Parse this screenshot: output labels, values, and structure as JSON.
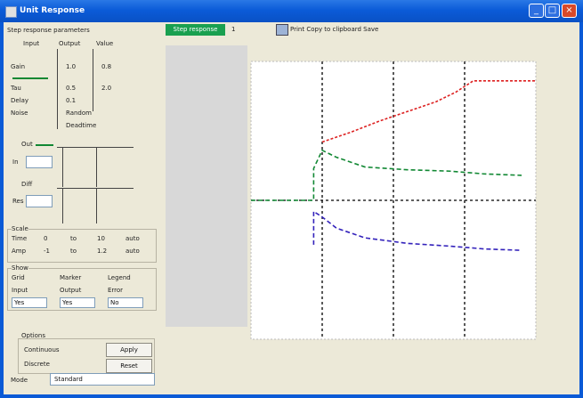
{
  "window": {
    "title": "Unit Response"
  },
  "titlebar_buttons": {
    "minimize": "_",
    "maximize": "□",
    "close": "×"
  },
  "toolbar": {
    "active_tab": "Step response",
    "tab2": "1",
    "icon": "print-icon",
    "label": "Print  Copy to clipboard  Save"
  },
  "left_panel": {
    "header": "Step response parameters",
    "col_headers": [
      "Input",
      "Output",
      "Value"
    ],
    "rows": [
      {
        "name": "Gain",
        "a": "1.0",
        "b": "0.8"
      },
      {
        "name": "Tau",
        "a": "0.5",
        "b": "2.0"
      },
      {
        "name": "Delay",
        "a": "0.1",
        "b": ""
      },
      {
        "name": "Noise",
        "a": "Random",
        "b": ""
      }
    ],
    "extra": "Deadtime",
    "small_labels": [
      "Out",
      "In",
      "Diff",
      "Res"
    ],
    "group1_title": "Scale",
    "group1_row1": [
      "Time",
      "0",
      "to",
      "10",
      "auto"
    ],
    "group1_row2": [
      "Amp",
      "-1",
      "to",
      "1.2",
      "auto"
    ],
    "group2_title": "Show",
    "group2_row1": [
      "Grid",
      "Marker",
      "Legend"
    ],
    "group2_row2": [
      "Input",
      "Output",
      "Error"
    ],
    "group2_values": [
      "Yes",
      "Yes",
      "No"
    ],
    "bottom_label": "Options",
    "radio1": "Continuous",
    "radio2": "Discrete",
    "btn_apply": "Apply",
    "btn_reset": "Reset",
    "footer_label": "Mode",
    "footer_value": "Standard"
  },
  "chart_data": {
    "type": "line",
    "series": [
      {
        "x": [
          0.25,
          0.35,
          0.45,
          0.55,
          0.65,
          0.72,
          0.78,
          0.86,
          0.95,
          1.0
        ],
        "values": [
          0.42,
          0.49,
          0.57,
          0.64,
          0.71,
          0.78,
          0.86,
          0.86,
          0.86,
          0.86
        ]
      },
      {
        "x": [
          0.0,
          0.22,
          0.22,
          0.25,
          0.3,
          0.4,
          0.55,
          0.7,
          0.82,
          0.95
        ],
        "values": [
          0.0,
          0.0,
          0.23,
          0.36,
          0.31,
          0.24,
          0.22,
          0.21,
          0.19,
          0.18
        ]
      },
      {
        "x": [
          0.22,
          0.22,
          0.25,
          0.3,
          0.4,
          0.55,
          0.7,
          0.82,
          0.95
        ],
        "values": [
          -0.32,
          -0.08,
          -0.12,
          -0.2,
          -0.27,
          -0.31,
          -0.33,
          -0.35,
          -0.36
        ]
      }
    ],
    "colors": [
      "#dd2222",
      "#118833",
      "#3322bb"
    ],
    "ylim": [
      -1.0,
      1.0
    ],
    "xlim": [
      0,
      1
    ],
    "gridlines_x": [
      0.25,
      0.5,
      0.75
    ]
  }
}
